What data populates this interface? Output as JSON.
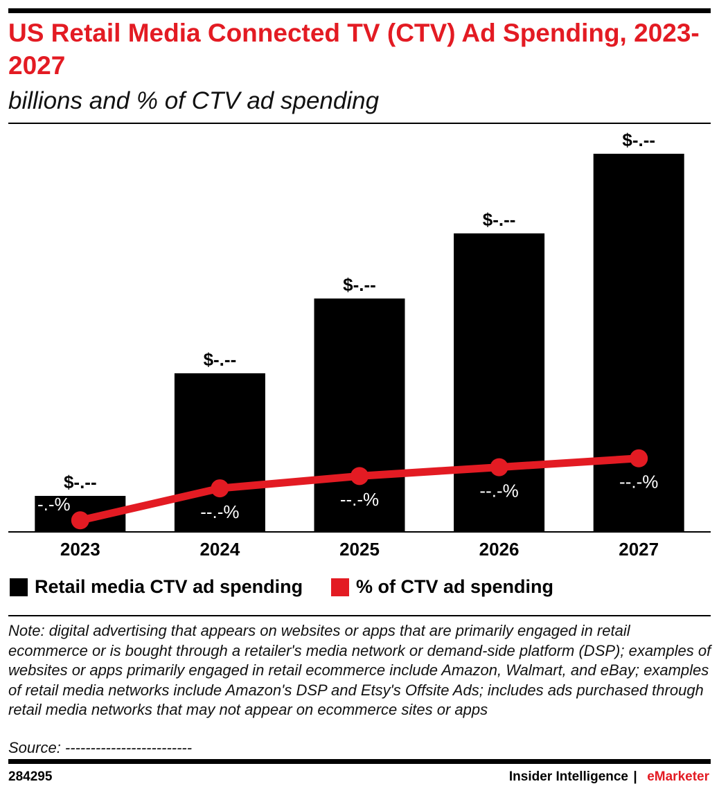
{
  "chart_data": {
    "type": "bar",
    "title": "US Retail Media Connected TV (CTV) Ad Spending, 2023-2027",
    "subtitle": "billions and % of CTV ad spending",
    "categories": [
      "2023",
      "2024",
      "2025",
      "2026",
      "2027"
    ],
    "series": [
      {
        "name": "Retail media CTV ad spending",
        "color": "#000000",
        "values": [
          0.52,
          2.29,
          3.37,
          4.31,
          5.46
        ],
        "value_labels": [
          "$-.--",
          "$-.--",
          "$-.--",
          "$-.--",
          "$-.--"
        ]
      },
      {
        "name": "% of CTV ad spending",
        "color": "#e31b23",
        "type": "line",
        "axis": "y2",
        "values": [
          1.7,
          6.4,
          8.2,
          9.5,
          10.8
        ],
        "value_labels": [
          "-.-%",
          "--.-%",
          "--.-%",
          "--.-%",
          "--.-%"
        ]
      }
    ],
    "ylim": [
      0,
      5.9
    ],
    "y2lim": [
      0,
      60
    ],
    "note": "Note: digital advertising that appears on websites or apps that are primarily engaged in retail ecommerce or is bought through a retailer's media network or demand-side platform (DSP); examples of websites or apps primarily engaged in retail ecommerce include Amazon, Walmart, and eBay; examples of retail media networks include Amazon's DSP and Etsy's Offsite Ads; includes ads purchased through retail media networks that may not appear on ecommerce sites or apps",
    "source": "Source: -------------------------"
  },
  "footer": {
    "id": "284295",
    "publisher": "Insider Intelligence",
    "separator": "|",
    "brand": "eMarketer"
  }
}
